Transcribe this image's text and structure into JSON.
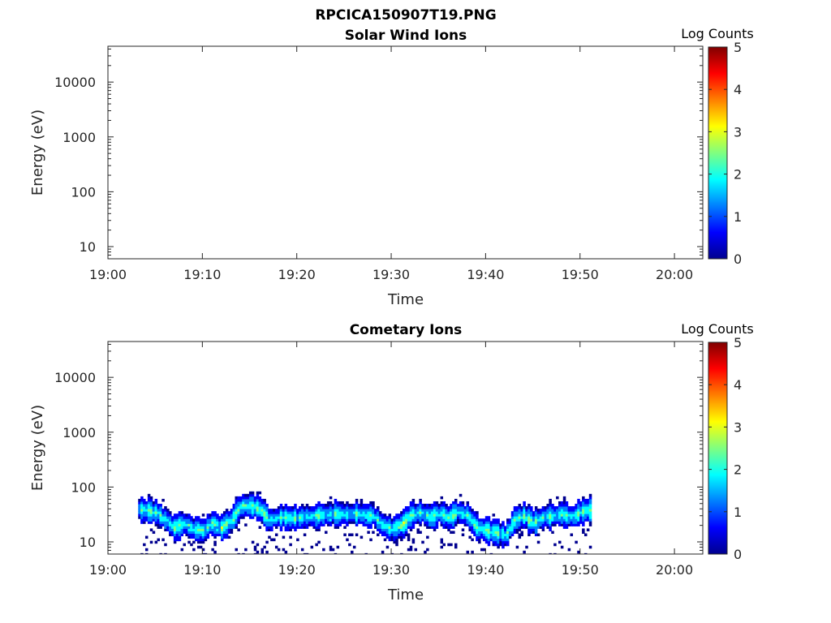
{
  "figure_title": "RPCICA150907T19.PNG",
  "colors": {
    "axis": "#262626",
    "colormap": [
      "#00008f",
      "#0000ff",
      "#0080ff",
      "#00ffff",
      "#80ff80",
      "#ffff00",
      "#ff8000",
      "#ff0000",
      "#800000"
    ]
  },
  "chart_data": [
    {
      "type": "heatmap",
      "title": "Solar Wind Ions",
      "xlabel": "Time",
      "ylabel": "Energy (eV)",
      "x_ticks": [
        "19:00",
        "19:10",
        "19:20",
        "19:30",
        "19:40",
        "19:50",
        "20:00"
      ],
      "x_range_minutes_after_19h": [
        0,
        63
      ],
      "y_scale": "log",
      "y_ticks": [
        "10",
        "100",
        "1000",
        "10000"
      ],
      "y_range_eV": [
        6,
        45000
      ],
      "colorbar": {
        "label": "Log Counts",
        "ticks": [
          "0",
          "1",
          "2",
          "3",
          "4",
          "5"
        ],
        "range": [
          0,
          5
        ]
      },
      "data": []
    },
    {
      "type": "heatmap",
      "title": "Cometary Ions",
      "xlabel": "Time",
      "ylabel": "Energy (eV)",
      "x_ticks": [
        "19:00",
        "19:10",
        "19:20",
        "19:30",
        "19:40",
        "19:50",
        "20:00"
      ],
      "x_range_minutes_after_19h": [
        0,
        63
      ],
      "y_scale": "log",
      "y_ticks": [
        "10",
        "100",
        "1000",
        "10000"
      ],
      "y_range_eV": [
        6,
        45000
      ],
      "colorbar": {
        "label": "Log Counts",
        "ticks": [
          "0",
          "1",
          "2",
          "3",
          "4",
          "5"
        ],
        "range": [
          0,
          5
        ]
      },
      "data_start_time": "19:03",
      "data_end_time": "19:51",
      "peak_energy_trace_eV": [
        [
          3,
          40
        ],
        [
          5,
          35
        ],
        [
          6,
          25
        ],
        [
          7,
          18
        ],
        [
          8,
          22
        ],
        [
          9,
          17
        ],
        [
          10,
          16
        ],
        [
          11,
          22
        ],
        [
          12,
          18
        ],
        [
          13,
          25
        ],
        [
          14,
          45
        ],
        [
          15,
          45
        ],
        [
          16,
          40
        ],
        [
          17,
          25
        ],
        [
          18,
          28
        ],
        [
          20,
          27
        ],
        [
          22,
          30
        ],
        [
          24,
          32
        ],
        [
          26,
          32
        ],
        [
          28,
          30
        ],
        [
          29,
          20
        ],
        [
          30,
          17
        ],
        [
          31,
          20
        ],
        [
          32,
          30
        ],
        [
          33,
          35
        ],
        [
          34,
          28
        ],
        [
          35,
          33
        ],
        [
          36,
          28
        ],
        [
          37,
          35
        ],
        [
          38,
          30
        ],
        [
          39,
          18
        ],
        [
          40,
          16
        ],
        [
          41,
          15
        ],
        [
          42,
          13
        ],
        [
          43,
          25
        ],
        [
          44,
          30
        ],
        [
          45,
          22
        ],
        [
          46,
          28
        ],
        [
          47,
          30
        ],
        [
          48,
          32
        ],
        [
          49,
          28
        ],
        [
          50,
          35
        ],
        [
          51,
          38
        ]
      ],
      "peak_log_counts_range": [
        1.5,
        2.5
      ]
    }
  ]
}
